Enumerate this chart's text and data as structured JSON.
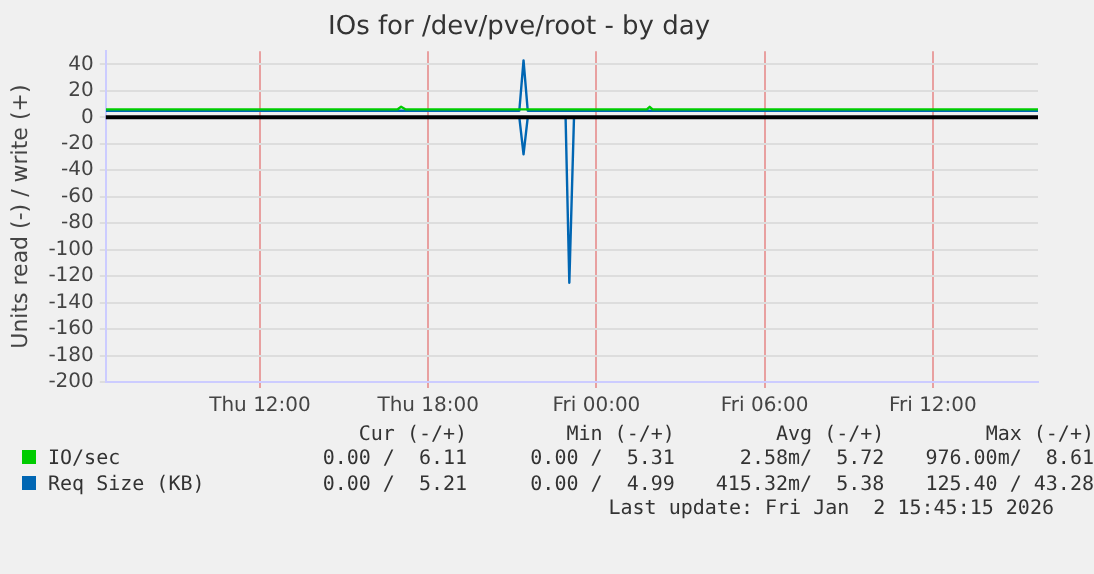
{
  "chart_data": {
    "type": "line",
    "title": "IOs for /dev/pve/root - by day",
    "ylabel": "Units read (-) / write (+)",
    "xlim": [
      "2026-01-01T06:30",
      "2026-01-02T15:45"
    ],
    "xticks": [
      {
        "value": "2026-01-01T12:00",
        "label": "Thu 12:00"
      },
      {
        "value": "2026-01-01T18:00",
        "label": "Thu 18:00"
      },
      {
        "value": "2026-01-02T00:00",
        "label": "Fri 00:00"
      },
      {
        "value": "2026-01-02T06:00",
        "label": "Fri 06:00"
      },
      {
        "value": "2026-01-02T12:00",
        "label": "Fri 12:00"
      }
    ],
    "ylim": [
      -200,
      50
    ],
    "yticks": [
      -200,
      -180,
      -160,
      -140,
      -120,
      -100,
      -80,
      -60,
      -40,
      -20,
      0,
      20,
      40
    ],
    "grid": true,
    "legend": "bottom",
    "marker": "none",
    "line_style": "solid",
    "ref_lines": [
      {
        "axis": "y",
        "value": 0,
        "color": "#000000"
      }
    ],
    "series": [
      {
        "name": "IO/sec",
        "color": "#00cc00",
        "x": [
          "2026-01-01T06:30",
          "2026-01-01T16:54",
          "2026-01-01T17:02",
          "2026-01-01T17:12",
          "2026-01-02T01:48",
          "2026-01-02T01:54",
          "2026-01-02T02:00",
          "2026-01-02T15:45"
        ],
        "values": [
          6,
          6,
          8,
          6,
          6,
          8,
          6,
          6
        ]
      },
      {
        "name": "Req Size (KB)",
        "color": "#0066b3",
        "x": [
          "2026-01-01T06:30",
          "2026-01-01T21:15",
          "2026-01-01T21:24",
          "2026-01-01T21:33",
          "2026-01-02T15:45"
        ],
        "values": [
          5,
          5,
          43,
          5,
          5
        ]
      },
      {
        "color": "#0066b3",
        "x": [
          "2026-01-01T21:15",
          "2026-01-01T21:24",
          "2026-01-01T21:33",
          "2026-01-01T22:00",
          "2026-01-01T22:54",
          "2026-01-01T23:02",
          "2026-01-01T23:12"
        ],
        "values": [
          0,
          -28,
          0,
          null,
          0,
          -125,
          0
        ]
      }
    ],
    "annotations": [
      "Cur (-/+)",
      "Min (-/+)",
      "Avg (-/+)",
      "Max (-/+)",
      "0.00 /  6.11",
      "0.00 /  5.31",
      "2.58m/  5.72",
      "976.00m/  8.61",
      "0.00 /  5.21",
      "0.00 /  4.99",
      "415.32m/  5.38",
      "125.40 / 43.28",
      "Last update: Fri Jan  2 15:45:15 2026"
    ]
  }
}
